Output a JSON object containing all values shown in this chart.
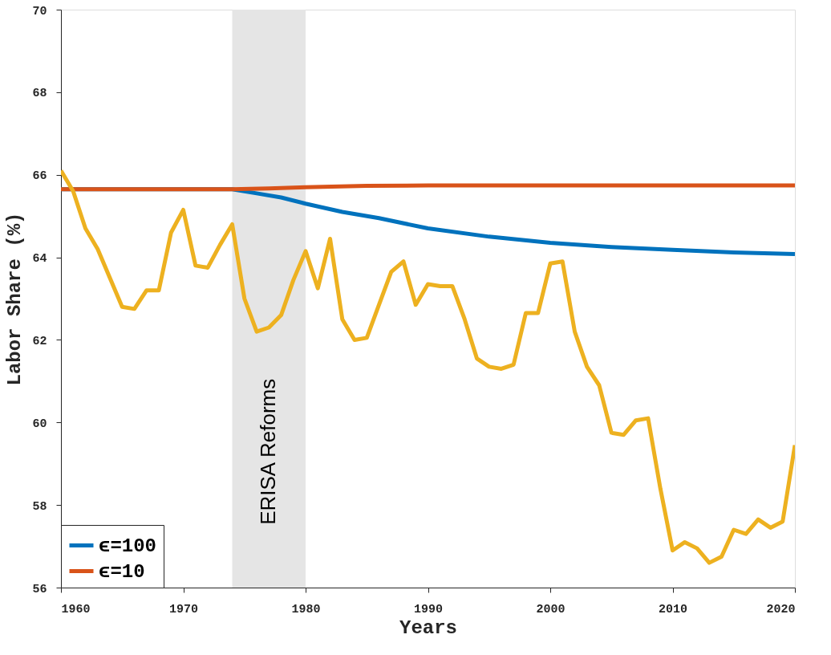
{
  "chart_data": {
    "type": "line",
    "xlabel": "Years",
    "ylabel": "Labor Share (%)",
    "xlim": [
      1960,
      2020
    ],
    "xticks": [
      1960,
      1970,
      1980,
      1990,
      2000,
      2010,
      2020
    ],
    "ylim": [
      56,
      70
    ],
    "yticks": [
      56,
      58,
      60,
      62,
      64,
      66,
      68,
      70
    ],
    "grid": false,
    "legend": "bottom left",
    "line_style": "solid",
    "marker": "none",
    "bands": [
      {
        "axis": "x",
        "from": 1974,
        "to": 1980,
        "label": "ERISA Reforms",
        "color": "#e5e5e5"
      }
    ],
    "series": [
      {
        "name": "ϵ=100",
        "color": "#0072bd",
        "x": [
          1960,
          1974,
          1976,
          1978,
          1980,
          1983,
          1986,
          1990,
          1995,
          2000,
          2005,
          2010,
          2015,
          2020
        ],
        "values": [
          65.65,
          65.65,
          65.55,
          65.45,
          65.3,
          65.1,
          64.95,
          64.7,
          64.5,
          64.35,
          64.25,
          64.18,
          64.12,
          64.08
        ]
      },
      {
        "name": "ϵ=10",
        "color": "#d95319",
        "x": [
          1960,
          1974,
          1977,
          1980,
          1985,
          1990,
          2000,
          2020
        ],
        "values": [
          65.65,
          65.65,
          65.67,
          65.7,
          65.73,
          65.74,
          65.74,
          65.74
        ]
      },
      {
        "color": "#edb120",
        "x": [
          1960,
          1961,
          1962,
          1963,
          1964,
          1965,
          1966,
          1967,
          1968,
          1969,
          1970,
          1971,
          1972,
          1973,
          1974,
          1975,
          1976,
          1977,
          1978,
          1979,
          1980,
          1981,
          1982,
          1983,
          1984,
          1985,
          1986,
          1987,
          1988,
          1989,
          1990,
          1991,
          1992,
          1993,
          1994,
          1995,
          1996,
          1997,
          1998,
          1999,
          2000,
          2001,
          2002,
          2003,
          2004,
          2005,
          2006,
          2007,
          2008,
          2009,
          2010,
          2011,
          2012,
          2013,
          2014,
          2015,
          2016,
          2017,
          2018,
          2019,
          2020
        ],
        "values": [
          66.1,
          65.6,
          64.7,
          64.2,
          63.5,
          62.8,
          62.75,
          63.2,
          63.2,
          64.6,
          65.15,
          63.8,
          63.75,
          64.3,
          64.8,
          63.0,
          62.2,
          62.3,
          62.6,
          63.45,
          64.15,
          63.25,
          64.45,
          62.5,
          62.0,
          62.05,
          62.85,
          63.65,
          63.9,
          62.85,
          63.35,
          63.3,
          63.3,
          62.5,
          61.55,
          61.35,
          61.3,
          61.4,
          62.65,
          62.65,
          63.85,
          63.9,
          62.2,
          61.35,
          60.9,
          59.75,
          59.7,
          60.05,
          60.1,
          58.4,
          56.9,
          57.1,
          56.95,
          56.6,
          56.75,
          57.4,
          57.3,
          57.65,
          57.45,
          57.6,
          59.45
        ]
      }
    ]
  }
}
